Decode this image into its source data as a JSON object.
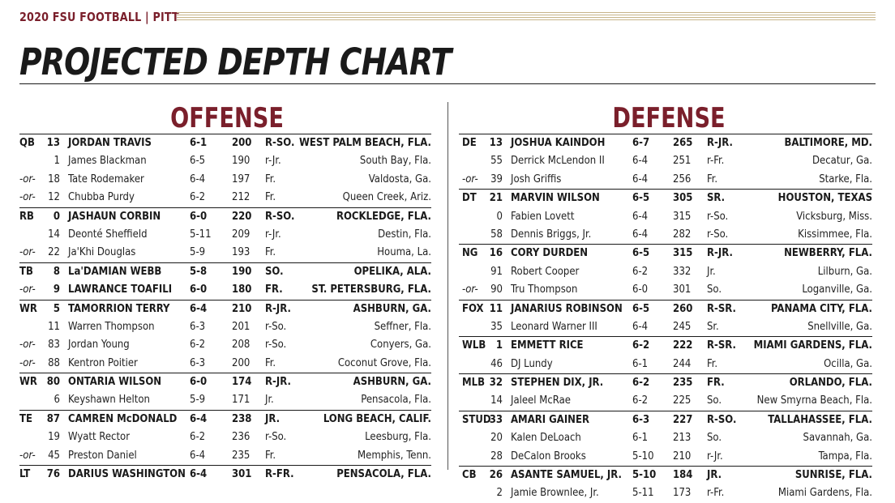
{
  "header": {
    "label": "2020 FSU FOOTBALL | PITT"
  },
  "title": "PROJECTED DEPTH CHART",
  "offense": {
    "title": "OFFENSE",
    "rows": [
      {
        "pos": "QB",
        "num": "13",
        "name": "JORDAN TRAVIS",
        "ht": "6-1",
        "wt": "200",
        "cl": "R-SO.",
        "hometown": "WEST PALM BEACH, FLA.",
        "starter": true
      },
      {
        "pos": "",
        "num": "1",
        "name": "James Blackman",
        "ht": "6-5",
        "wt": "190",
        "cl": "r-Jr.",
        "hometown": "South Bay, Fla."
      },
      {
        "pos": "-or-",
        "num": "18",
        "name": "Tate Rodemaker",
        "ht": "6-4",
        "wt": "197",
        "cl": "Fr.",
        "hometown": "Valdosta, Ga."
      },
      {
        "pos": "-or-",
        "num": "12",
        "name": "Chubba Purdy",
        "ht": "6-2",
        "wt": "212",
        "cl": "Fr.",
        "hometown": "Queen Creek, Ariz."
      },
      {
        "pos": "RB",
        "num": "0",
        "name": "JASHAUN CORBIN",
        "ht": "6-0",
        "wt": "220",
        "cl": "R-SO.",
        "hometown": "ROCKLEDGE, FLA.",
        "starter": true
      },
      {
        "pos": "",
        "num": "14",
        "name": "Deonté Sheffield",
        "ht": "5-11",
        "wt": "209",
        "cl": "r-Jr.",
        "hometown": "Destin, Fla."
      },
      {
        "pos": "-or-",
        "num": "22",
        "name": "Ja'Khi Douglas",
        "ht": "5-9",
        "wt": "193",
        "cl": "Fr.",
        "hometown": "Houma, La."
      },
      {
        "pos": "TB",
        "num": "8",
        "name": "La'DAMIAN WEBB",
        "ht": "5-8",
        "wt": "190",
        "cl": "SO.",
        "hometown": "OPELIKA, ALA.",
        "starter": true
      },
      {
        "pos": "-or-",
        "num": "9",
        "name": "LAWRANCE TOAFILI",
        "ht": "6-0",
        "wt": "180",
        "cl": "FR.",
        "hometown": "ST. PETERSBURG, FLA.",
        "bold": true
      },
      {
        "pos": "WR",
        "num": "5",
        "name": "TAMORRION TERRY",
        "ht": "6-4",
        "wt": "210",
        "cl": "R-JR.",
        "hometown": "ASHBURN, GA.",
        "starter": true
      },
      {
        "pos": "",
        "num": "11",
        "name": "Warren Thompson",
        "ht": "6-3",
        "wt": "201",
        "cl": "r-So.",
        "hometown": "Seffner, Fla."
      },
      {
        "pos": "-or-",
        "num": "83",
        "name": "Jordan Young",
        "ht": "6-2",
        "wt": "208",
        "cl": "r-So.",
        "hometown": "Conyers, Ga."
      },
      {
        "pos": "-or-",
        "num": "88",
        "name": "Kentron Poitier",
        "ht": "6-3",
        "wt": "200",
        "cl": "Fr.",
        "hometown": "Coconut Grove, Fla."
      },
      {
        "pos": "WR",
        "num": "80",
        "name": "ONTARIA WILSON",
        "ht": "6-0",
        "wt": "174",
        "cl": "R-JR.",
        "hometown": "ASHBURN, GA.",
        "starter": true
      },
      {
        "pos": "",
        "num": "6",
        "name": "Keyshawn Helton",
        "ht": "5-9",
        "wt": "171",
        "cl": "Jr.",
        "hometown": "Pensacola, Fla."
      },
      {
        "pos": "TE",
        "num": "87",
        "name": "CAMREN McDONALD",
        "ht": "6-4",
        "wt": "238",
        "cl": "JR.",
        "hometown": "LONG BEACH, CALIF.",
        "starter": true
      },
      {
        "pos": "",
        "num": "19",
        "name": "Wyatt Rector",
        "ht": "6-2",
        "wt": "236",
        "cl": "r-So.",
        "hometown": "Leesburg, Fla."
      },
      {
        "pos": "-or-",
        "num": "45",
        "name": "Preston Daniel",
        "ht": "6-4",
        "wt": "235",
        "cl": "Fr.",
        "hometown": "Memphis, Tenn."
      },
      {
        "pos": "LT",
        "num": "76",
        "name": "DARIUS WASHINGTON",
        "ht": "6-4",
        "wt": "301",
        "cl": "R-FR.",
        "hometown": "PENSACOLA, FLA.",
        "starter": true
      }
    ]
  },
  "defense": {
    "title": "DEFENSE",
    "rows": [
      {
        "pos": "DE",
        "num": "13",
        "name": "JOSHUA KAINDOH",
        "ht": "6-7",
        "wt": "265",
        "cl": "R-JR.",
        "hometown": "BALTIMORE, MD.",
        "starter": true
      },
      {
        "pos": "",
        "num": "55",
        "name": "Derrick McLendon II",
        "ht": "6-4",
        "wt": "251",
        "cl": "r-Fr.",
        "hometown": "Decatur, Ga."
      },
      {
        "pos": "-or-",
        "num": "39",
        "name": "Josh Griffis",
        "ht": "6-4",
        "wt": "256",
        "cl": "Fr.",
        "hometown": "Starke, Fla."
      },
      {
        "pos": "DT",
        "num": "21",
        "name": "MARVIN WILSON",
        "ht": "6-5",
        "wt": "305",
        "cl": "SR.",
        "hometown": "HOUSTON, TEXAS",
        "starter": true
      },
      {
        "pos": "",
        "num": "0",
        "name": "Fabien Lovett",
        "ht": "6-4",
        "wt": "315",
        "cl": "r-So.",
        "hometown": "Vicksburg, Miss."
      },
      {
        "pos": "",
        "num": "58",
        "name": "Dennis Briggs, Jr.",
        "ht": "6-4",
        "wt": "282",
        "cl": "r-So.",
        "hometown": "Kissimmee, Fla."
      },
      {
        "pos": "NG",
        "num": "16",
        "name": "CORY DURDEN",
        "ht": "6-5",
        "wt": "315",
        "cl": "R-JR.",
        "hometown": "NEWBERRY, FLA.",
        "starter": true
      },
      {
        "pos": "",
        "num": "91",
        "name": "Robert Cooper",
        "ht": "6-2",
        "wt": "332",
        "cl": "Jr.",
        "hometown": "Lilburn, Ga."
      },
      {
        "pos": "-or-",
        "num": "90",
        "name": "Tru Thompson",
        "ht": "6-0",
        "wt": "301",
        "cl": "So.",
        "hometown": "Loganville, Ga."
      },
      {
        "pos": "FOX",
        "num": "11",
        "name": "JANARIUS ROBINSON",
        "ht": "6-5",
        "wt": "260",
        "cl": "R-SR.",
        "hometown": "PANAMA CITY, FLA.",
        "starter": true
      },
      {
        "pos": "",
        "num": "35",
        "name": "Leonard Warner III",
        "ht": "6-4",
        "wt": "245",
        "cl": "Sr.",
        "hometown": "Snellville, Ga."
      },
      {
        "pos": "WLB",
        "num": "1",
        "name": "EMMETT RICE",
        "ht": "6-2",
        "wt": "222",
        "cl": "R-SR.",
        "hometown": "MIAMI GARDENS, FLA.",
        "starter": true
      },
      {
        "pos": "",
        "num": "46",
        "name": "DJ Lundy",
        "ht": "6-1",
        "wt": "244",
        "cl": "Fr.",
        "hometown": "Ocilla, Ga."
      },
      {
        "pos": "MLB",
        "num": "32",
        "name": "STEPHEN DIX, JR.",
        "ht": "6-2",
        "wt": "235",
        "cl": "FR.",
        "hometown": "ORLANDO, FLA.",
        "starter": true
      },
      {
        "pos": "",
        "num": "14",
        "name": "Jaleel McRae",
        "ht": "6-2",
        "wt": "225",
        "cl": "So.",
        "hometown": "New Smyrna Beach, Fla."
      },
      {
        "pos": "STUD",
        "num": "33",
        "name": "AMARI GAINER",
        "ht": "6-3",
        "wt": "227",
        "cl": "R-SO.",
        "hometown": "TALLAHASSEE, FLA.",
        "starter": true
      },
      {
        "pos": "",
        "num": "20",
        "name": "Kalen DeLoach",
        "ht": "6-1",
        "wt": "213",
        "cl": "So.",
        "hometown": "Savannah, Ga."
      },
      {
        "pos": "",
        "num": "28",
        "name": "DeCalon Brooks",
        "ht": "5-10",
        "wt": "210",
        "cl": "r-Jr.",
        "hometown": "Tampa, Fla."
      },
      {
        "pos": "CB",
        "num": "26",
        "name": "ASANTE SAMUEL, JR.",
        "ht": "5-10",
        "wt": "184",
        "cl": "JR.",
        "hometown": "SUNRISE, FLA.",
        "starter": true
      },
      {
        "pos": "",
        "num": "2",
        "name": "Jamie Brownlee, Jr.",
        "ht": "5-11",
        "wt": "173",
        "cl": "r-Fr.",
        "hometown": "Miami Gardens, Fla."
      }
    ]
  },
  "colors": {
    "accent": "#7a1f2b",
    "rule": "#c7b48a",
    "text": "#1a1a1a"
  }
}
